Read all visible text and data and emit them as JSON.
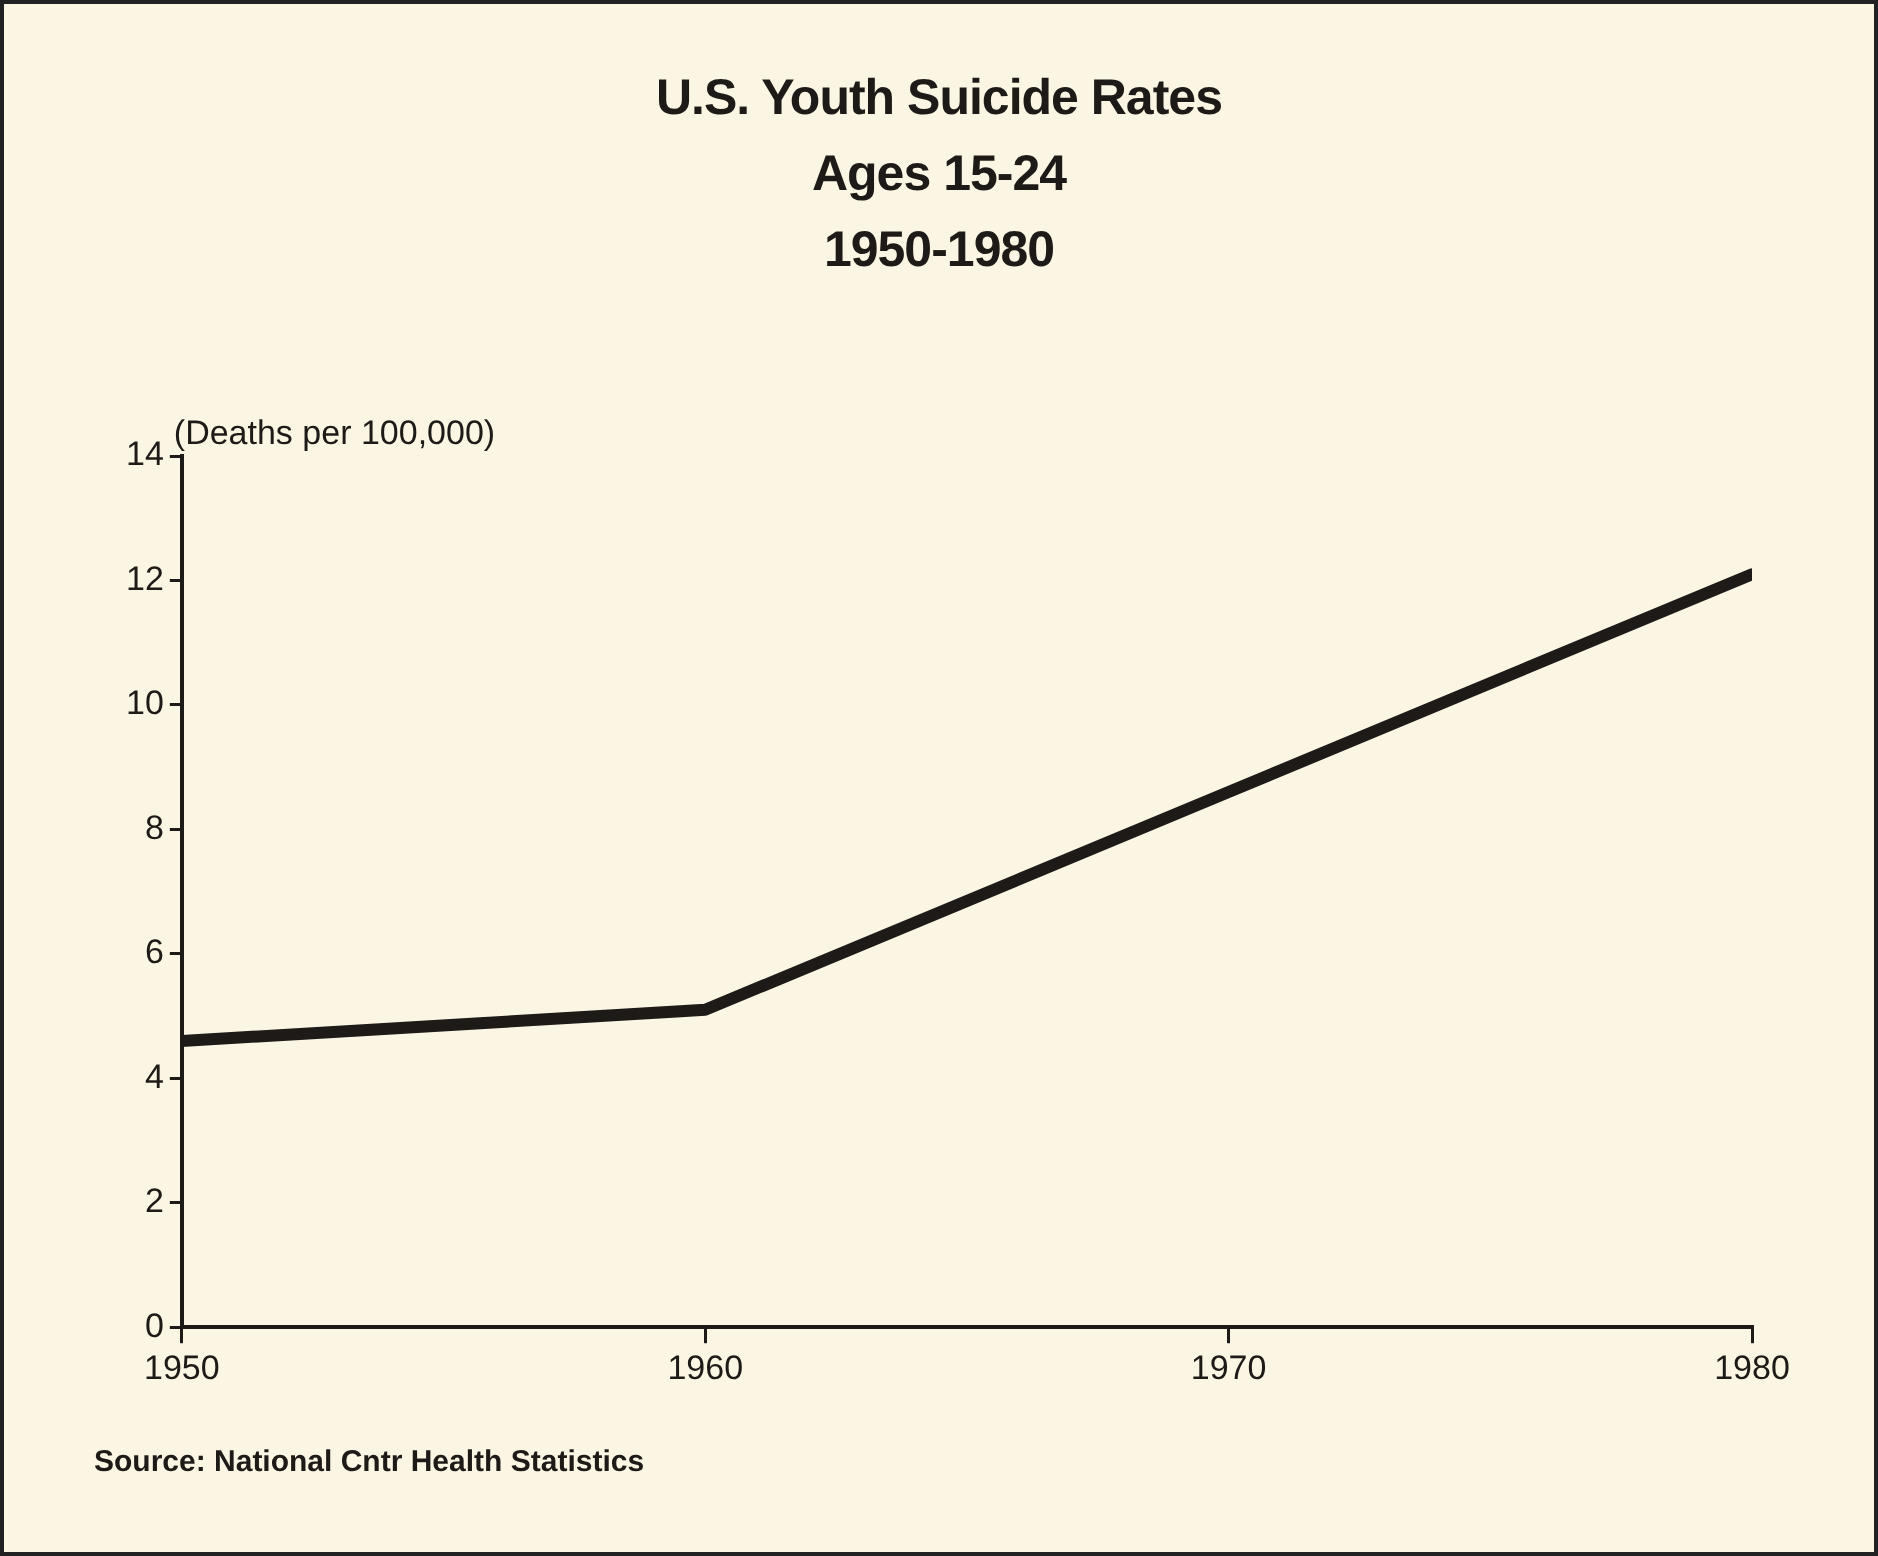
{
  "chart_data": {
    "type": "line",
    "title": "U.S. Youth Suicide Rates",
    "subtitle": "Ages 15-24\n1950-1980",
    "ylabel": "(Deaths per 100,000)",
    "x": [
      1950,
      1960,
      1970,
      1980
    ],
    "series": [
      {
        "color": "#1e1a17",
        "values": [
          4.6,
          5.1,
          8.6,
          12.1
        ]
      }
    ],
    "xlim": [
      1950,
      1980
    ],
    "xticks": [
      1950,
      1960,
      1970,
      1980
    ],
    "ylim": [
      0,
      14
    ],
    "yticks": [
      0,
      2,
      4,
      6,
      8,
      10,
      12,
      14
    ],
    "grid": false,
    "legend": false,
    "marker": "none",
    "line_style": "solid",
    "annotations": [
      "Source: National Cntr Health Statistics"
    ]
  }
}
